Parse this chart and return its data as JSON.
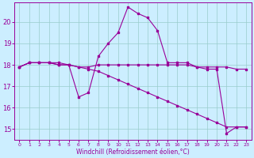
{
  "xlabel": "Windchill (Refroidissement éolien,°C)",
  "background_color": "#cceeff",
  "grid_color": "#99cccc",
  "line_color": "#990099",
  "x_ticks": [
    0,
    1,
    2,
    3,
    4,
    5,
    6,
    7,
    8,
    9,
    10,
    11,
    12,
    13,
    14,
    15,
    16,
    17,
    18,
    19,
    20,
    21,
    22,
    23
  ],
  "y_ticks": [
    15,
    16,
    17,
    18,
    19,
    20
  ],
  "ylim": [
    14.5,
    20.9
  ],
  "xlim": [
    -0.5,
    23.5
  ],
  "series1": [
    17.9,
    18.1,
    18.1,
    18.1,
    18.0,
    18.0,
    17.9,
    17.9,
    18.0,
    18.0,
    18.0,
    18.0,
    18.0,
    18.0,
    18.0,
    18.0,
    18.0,
    18.0,
    17.9,
    17.9,
    17.9,
    17.9,
    17.8,
    17.8
  ],
  "series2": [
    17.9,
    18.1,
    18.1,
    18.1,
    18.1,
    18.0,
    17.9,
    17.8,
    17.7,
    17.5,
    17.3,
    17.1,
    16.9,
    16.7,
    16.5,
    16.3,
    16.1,
    15.9,
    15.7,
    15.5,
    15.3,
    15.1,
    15.1,
    15.1
  ],
  "series3": [
    17.9,
    18.1,
    18.1,
    18.1,
    18.0,
    18.0,
    16.5,
    16.7,
    18.4,
    19.0,
    19.5,
    20.7,
    20.4,
    20.2,
    19.6,
    18.1,
    18.1,
    18.1,
    17.9,
    17.8,
    17.8,
    14.8,
    15.1,
    15.1
  ]
}
